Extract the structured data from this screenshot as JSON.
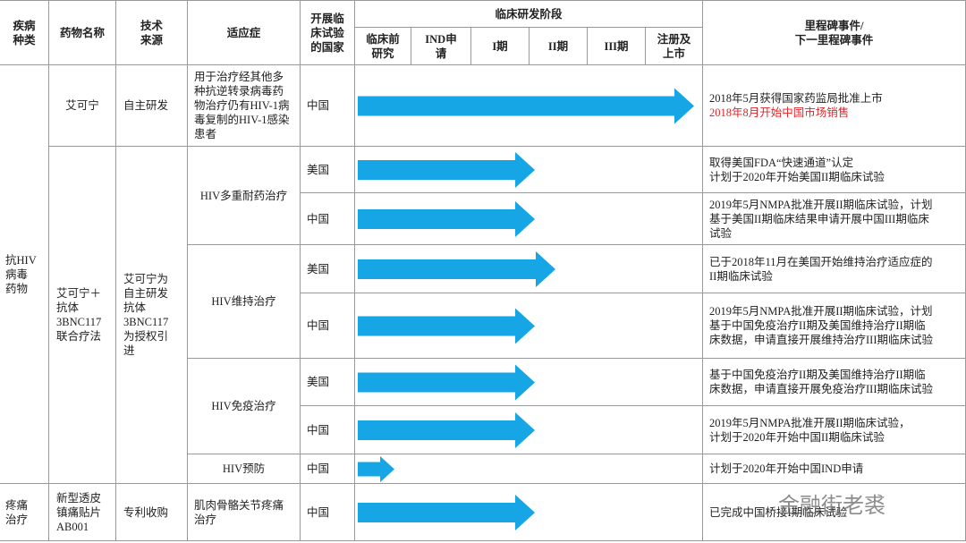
{
  "header": {
    "disease": "疾病种类",
    "drug": "药物名称",
    "tech": "技术来源",
    "indication": "适应症",
    "country": "开展临床试验的国家",
    "stage_group": "临床研发阶段",
    "stages": [
      "临床前研究",
      "IND申请",
      "I期",
      "II期",
      "III期",
      "注册及上市"
    ],
    "milestone": "里程碑事件/\n下一里程碑事件"
  },
  "diseases": [
    "抗HIV病毒药物",
    "疼痛治疗"
  ],
  "drugs": [
    {
      "name": "艾可宁",
      "tech": "自主研发"
    },
    {
      "name": "艾可宁＋抗体3BNC117联合疗法",
      "tech": "艾可宁为自主研发\n抗体3BNC117为授权引进"
    },
    {
      "name": "新型透皮镇痛贴片AB001",
      "tech": "专利收购"
    }
  ],
  "indications": [
    "用于治疗经其他多种抗逆转录病毒药物治疗仍有HIV-1病毒复制的HIV-1感染患者",
    "HIV多重耐药治疗",
    "HIV维持治疗",
    "HIV免疫治疗",
    "HIV预防",
    "肌肉骨骼关节疼痛治疗"
  ],
  "trials": [
    {
      "country": "中国",
      "milestone": [
        "2018年5月获得国家药监局批准上市",
        "2018年8月开始中国市场销售"
      ]
    },
    {
      "country": "美国",
      "milestone": [
        "取得美国FDA“快速通道”认定\n计划于2020年开始美国II期临床试验"
      ]
    },
    {
      "country": "中国",
      "milestone": [
        "2019年5月NMPA批准开展II期临床试验，计划\n基于美国II期临床结果申请开展中国III期临床\n试验"
      ]
    },
    {
      "country": "美国",
      "milestone": [
        "已于2018年11月在美国开始维持治疗适应症的\nII期临床试验"
      ]
    },
    {
      "country": "中国",
      "milestone": [
        "2019年5月NMPA批准开展II期临床试验，计划\n基于中国免疫治疗II期及美国维持治疗II期临\n床数据，申请直接开展维持治疗III期临床试验"
      ]
    },
    {
      "country": "美国",
      "milestone": [
        "基于中国免疫治疗II期及美国维持治疗II期临\n床数据，申请直接开展免疫治疗III期临床试验"
      ]
    },
    {
      "country": "中国",
      "milestone": [
        "2019年5月NMPA批准开展II期临床试验，\n计划于2020年开始中国II期临床试验"
      ]
    },
    {
      "country": "中国",
      "milestone": [
        "计划于2020年开始中国IND申请"
      ]
    },
    {
      "country": "中国",
      "milestone": [
        "已完成中国桥接I期临床试验"
      ]
    }
  ],
  "watermark": "金融街老裘"
}
